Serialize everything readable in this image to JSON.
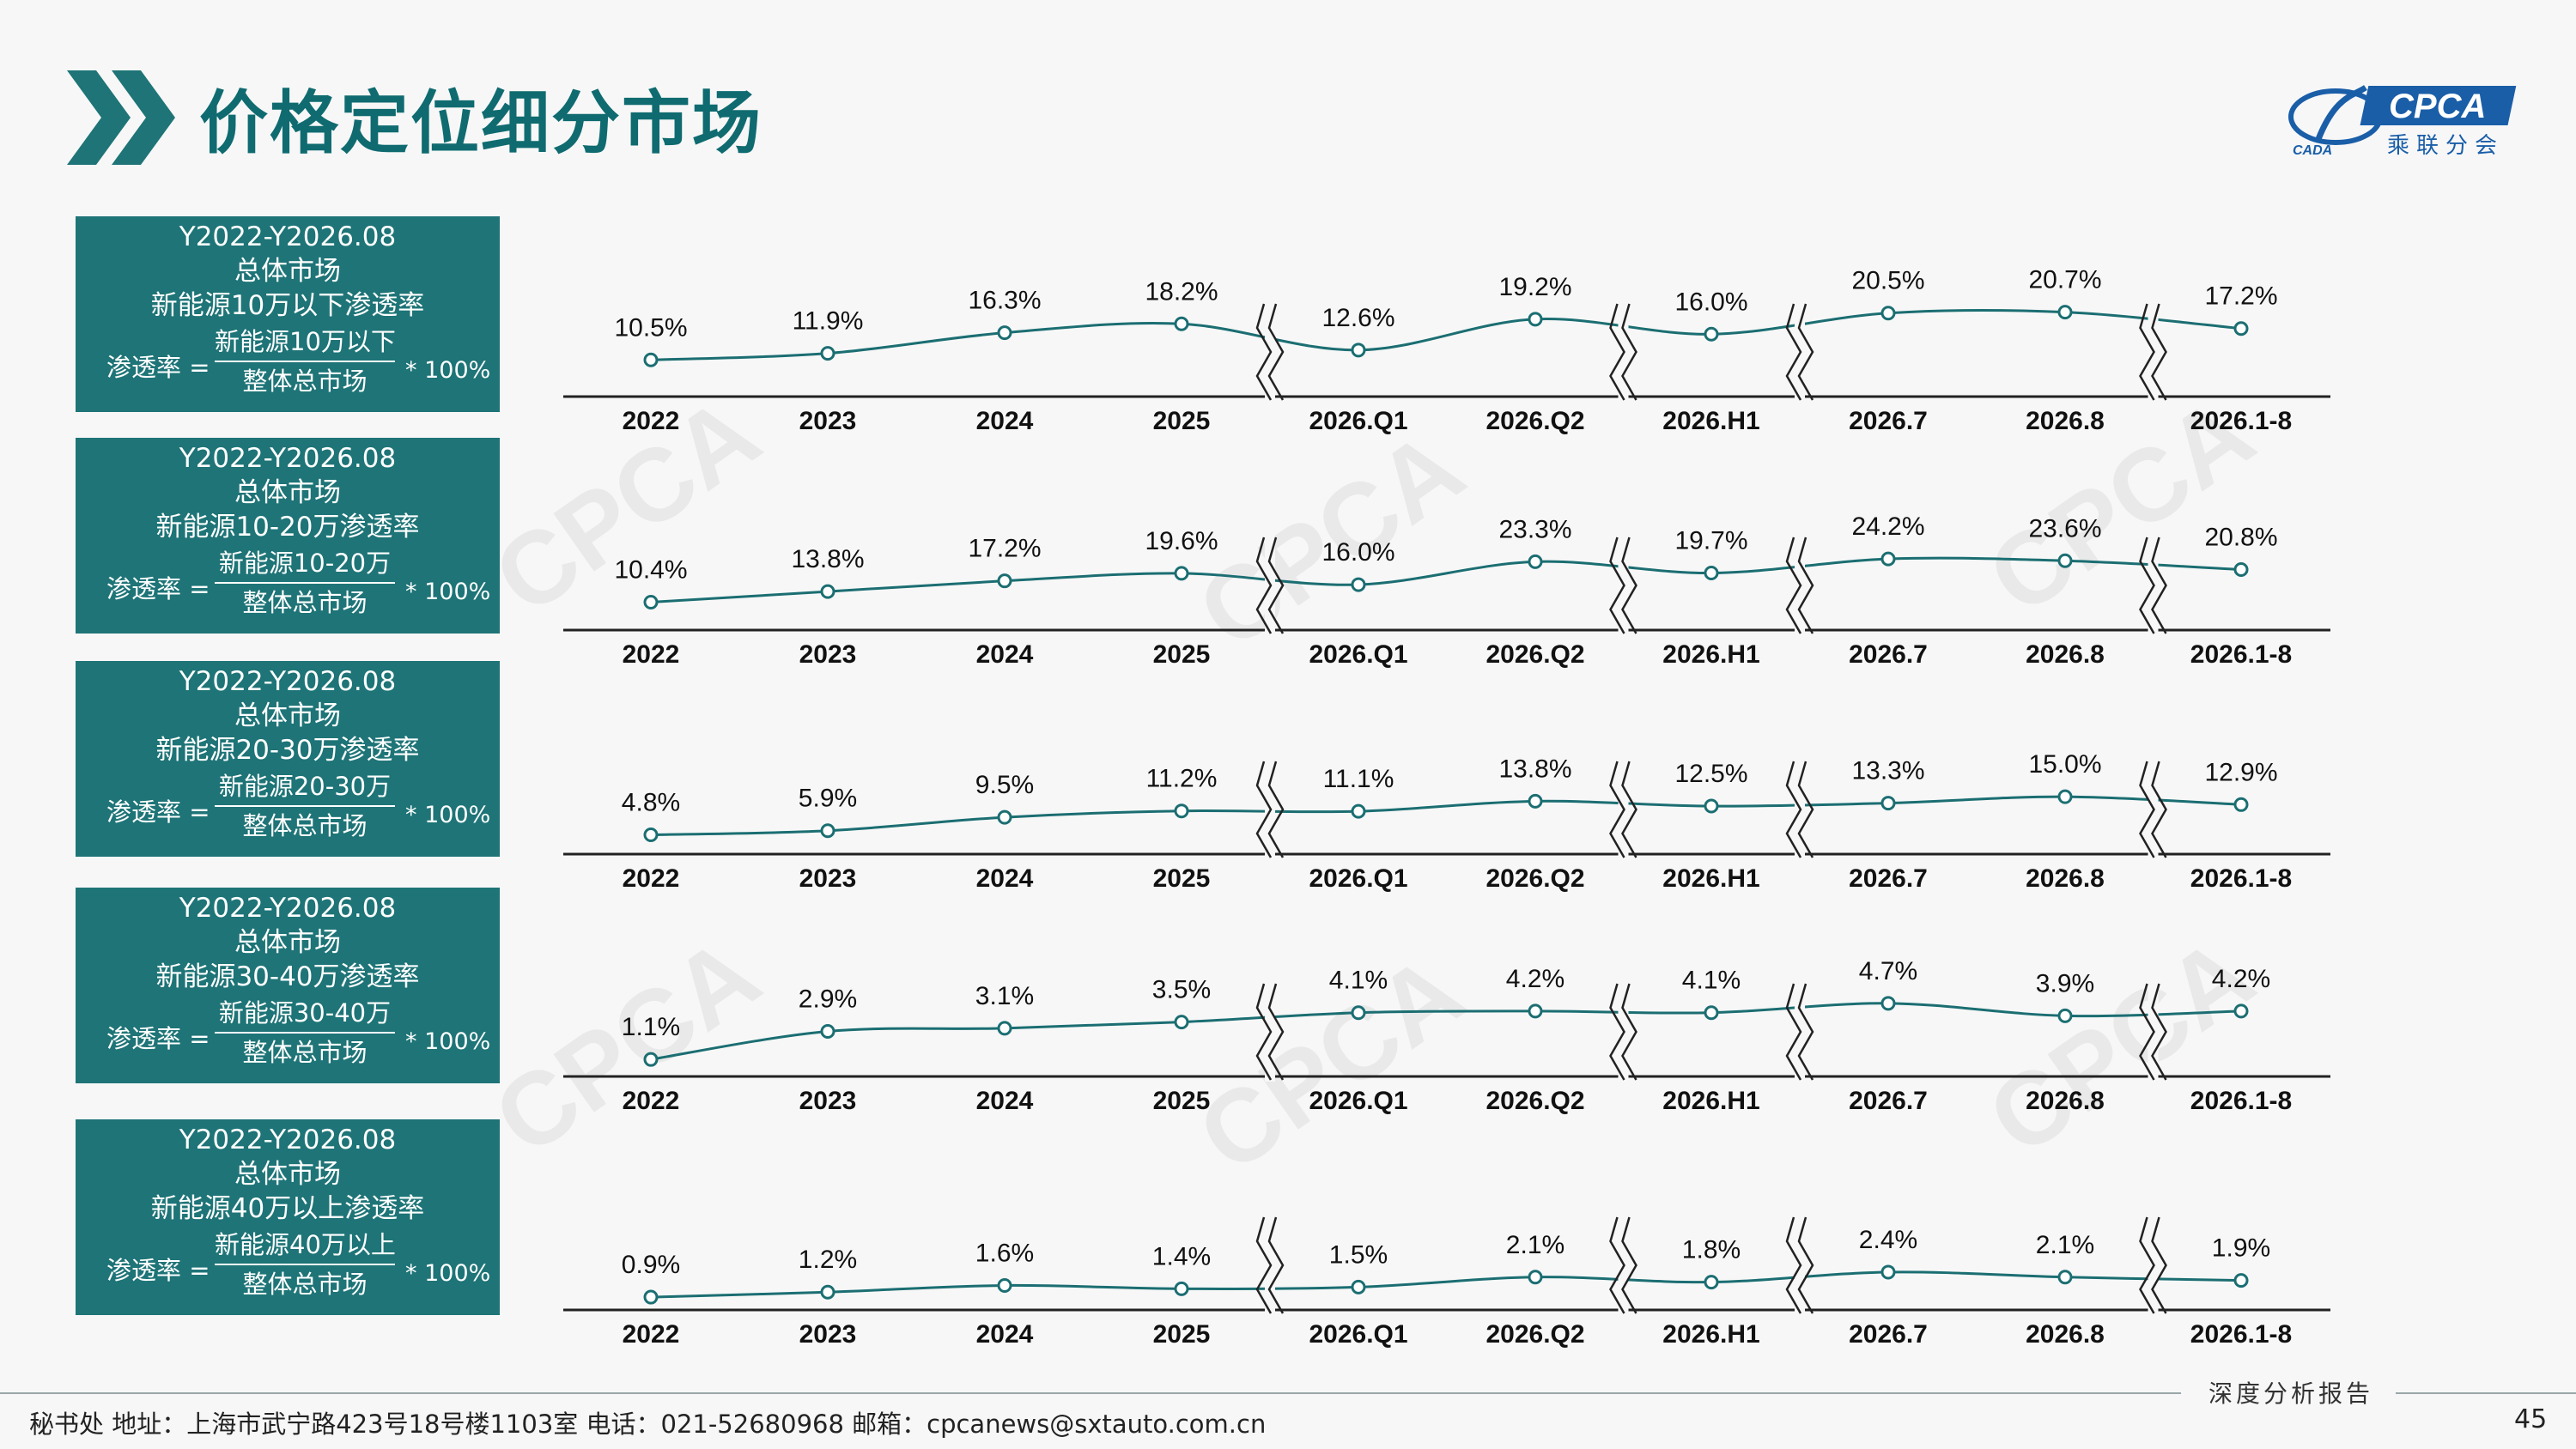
{
  "page": {
    "title": "价格定位细分市场",
    "logo": {
      "name": "CPCA",
      "sub": "乘联分会",
      "left_text": "CADA"
    },
    "report_tag": "深度分析报告",
    "footer": "秘书处   地址：上海市武宁路423号18号楼1103室  电话：021-52680968   邮箱：cpcanews@sxtauto.com.cn",
    "page_number": "45",
    "colors": {
      "teal": "#1e7477",
      "line": "#1b6e72",
      "title": "#0f6b70"
    }
  },
  "panels": [
    {
      "period": "Y2022-Y2026.08",
      "market": "总体市场",
      "series_title": "新能源10万以下渗透率",
      "rate_label": "渗透率 =",
      "numerator": "新能源10万以下",
      "denominator": "整体总市场",
      "multiplier": "* 100%"
    },
    {
      "period": "Y2022-Y2026.08",
      "market": "总体市场",
      "series_title": "新能源10-20万渗透率",
      "rate_label": "渗透率 =",
      "numerator": "新能源10-20万",
      "denominator": "整体总市场",
      "multiplier": "* 100%"
    },
    {
      "period": "Y2022-Y2026.08",
      "market": "总体市场",
      "series_title": "新能源20-30万渗透率",
      "rate_label": "渗透率 =",
      "numerator": "新能源20-30万",
      "denominator": "整体总市场",
      "multiplier": "* 100%"
    },
    {
      "period": "Y2022-Y2026.08",
      "market": "总体市场",
      "series_title": "新能源30-40万渗透率",
      "rate_label": "渗透率 =",
      "numerator": "新能源30-40万",
      "denominator": "整体总市场",
      "multiplier": "* 100%"
    },
    {
      "period": "Y2022-Y2026.08",
      "market": "总体市场",
      "series_title": "新能源40万以上渗透率",
      "rate_label": "渗透率 =",
      "numerator": "新能源40万以上",
      "denominator": "整体总市场",
      "multiplier": "* 100%"
    }
  ],
  "chart_data": [
    {
      "type": "line",
      "title": "",
      "categories": [
        "2022",
        "2023",
        "2024",
        "2025",
        "2026.Q1",
        "2026.Q2",
        "2026.H1",
        "2026.7",
        "2026.8",
        "2026.1-8"
      ],
      "values": [
        10.5,
        11.9,
        16.3,
        18.2,
        12.6,
        19.2,
        16.0,
        20.5,
        20.7,
        17.2
      ],
      "labels": [
        "10.5%",
        "11.9%",
        "16.3%",
        "18.2%",
        "12.6%",
        "19.2%",
        "16.0%",
        "20.5%",
        "20.7%",
        "17.2%"
      ],
      "unit": "%",
      "axis_breaks_after": [
        "2025",
        "2026.Q2",
        "2026.H1",
        "2026.8"
      ],
      "grid": false,
      "legend": "none"
    },
    {
      "type": "line",
      "title": "",
      "categories": [
        "2022",
        "2023",
        "2024",
        "2025",
        "2026.Q1",
        "2026.Q2",
        "2026.H1",
        "2026.7",
        "2026.8",
        "2026.1-8"
      ],
      "values": [
        10.4,
        13.8,
        17.2,
        19.6,
        16.0,
        23.3,
        19.7,
        24.2,
        23.6,
        20.8
      ],
      "labels": [
        "10.4%",
        "13.8%",
        "17.2%",
        "19.6%",
        "16.0%",
        "23.3%",
        "19.7%",
        "24.2%",
        "23.6%",
        "20.8%"
      ],
      "unit": "%",
      "axis_breaks_after": [
        "2025",
        "2026.Q2",
        "2026.H1",
        "2026.8"
      ],
      "grid": false,
      "legend": "none"
    },
    {
      "type": "line",
      "title": "",
      "categories": [
        "2022",
        "2023",
        "2024",
        "2025",
        "2026.Q1",
        "2026.Q2",
        "2026.H1",
        "2026.7",
        "2026.8",
        "2026.1-8"
      ],
      "values": [
        4.8,
        5.9,
        9.5,
        11.2,
        11.1,
        13.8,
        12.5,
        13.3,
        15.0,
        12.9
      ],
      "labels": [
        "4.8%",
        "5.9%",
        "9.5%",
        "11.2%",
        "11.1%",
        "13.8%",
        "12.5%",
        "13.3%",
        "15.0%",
        "12.9%"
      ],
      "unit": "%",
      "axis_breaks_after": [
        "2025",
        "2026.Q2",
        "2026.H1",
        "2026.8"
      ],
      "grid": false,
      "legend": "none"
    },
    {
      "type": "line",
      "title": "",
      "categories": [
        "2022",
        "2023",
        "2024",
        "2025",
        "2026.Q1",
        "2026.Q2",
        "2026.H1",
        "2026.7",
        "2026.8",
        "2026.1-8"
      ],
      "values": [
        1.1,
        2.9,
        3.1,
        3.5,
        4.1,
        4.2,
        4.1,
        4.7,
        3.9,
        4.2
      ],
      "labels": [
        "1.1%",
        "2.9%",
        "3.1%",
        "3.5%",
        "4.1%",
        "4.2%",
        "4.1%",
        "4.7%",
        "3.9%",
        "4.2%"
      ],
      "unit": "%",
      "axis_breaks_after": [
        "2025",
        "2026.Q2",
        "2026.H1",
        "2026.8"
      ],
      "grid": false,
      "legend": "none"
    },
    {
      "type": "line",
      "title": "",
      "categories": [
        "2022",
        "2023",
        "2024",
        "2025",
        "2026.Q1",
        "2026.Q2",
        "2026.H1",
        "2026.7",
        "2026.8",
        "2026.1-8"
      ],
      "values": [
        0.9,
        1.2,
        1.6,
        1.4,
        1.5,
        2.1,
        1.8,
        2.4,
        2.1,
        1.9
      ],
      "labels": [
        "0.9%",
        "1.2%",
        "1.6%",
        "1.4%",
        "1.5%",
        "2.1%",
        "1.8%",
        "2.4%",
        "2.1%",
        "1.9%"
      ],
      "unit": "%",
      "axis_breaks_after": [
        "2025",
        "2026.Q2",
        "2026.H1",
        "2026.8"
      ],
      "grid": false,
      "legend": "none"
    }
  ]
}
